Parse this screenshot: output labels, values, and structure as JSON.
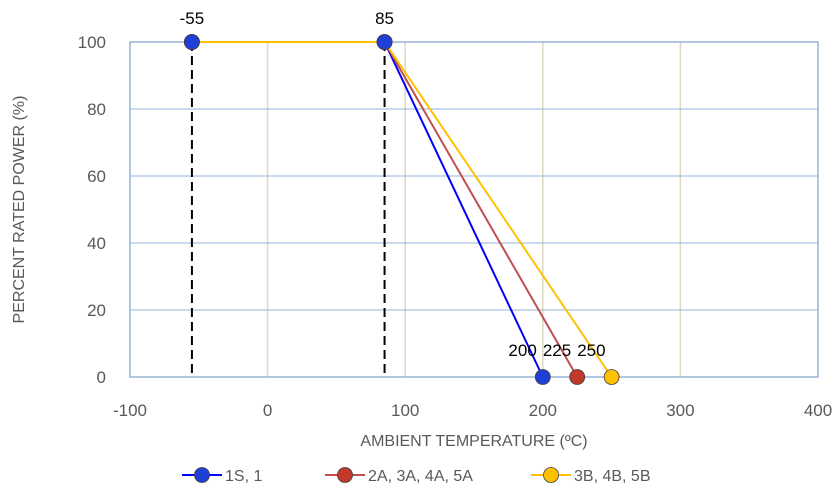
{
  "chart_data": {
    "type": "line",
    "xlabel": "AMBIENT TEMPERATURE (ºC)",
    "ylabel": "PERCENT RATED POWER (%)",
    "xlim": [
      -100,
      400
    ],
    "ylim": [
      0,
      100
    ],
    "xticks": [
      "-100",
      "0",
      "100",
      "200",
      "300",
      "400"
    ],
    "yticks": [
      "0",
      "20",
      "40",
      "60",
      "80",
      "100"
    ],
    "grid": true,
    "legend_position": "bottom",
    "series": [
      {
        "name": "1S, 1",
        "color": "#0000ff",
        "marker_color": "#1f3fd6",
        "points": [
          [
            -55,
            100
          ],
          [
            85,
            100
          ],
          [
            200,
            0
          ]
        ]
      },
      {
        "name": "2A, 3A, 4A, 5A",
        "color": "#c0504d",
        "marker_color": "#c0392b",
        "points": [
          [
            -55,
            100
          ],
          [
            85,
            100
          ],
          [
            225,
            0
          ]
        ]
      },
      {
        "name": "3B, 4B, 5B",
        "color": "#ffc000",
        "marker_color": "#ffc000",
        "points": [
          [
            -55,
            100
          ],
          [
            85,
            100
          ],
          [
            250,
            0
          ]
        ]
      }
    ],
    "reference_lines": [
      {
        "x": -55,
        "style": "dashed"
      },
      {
        "x": 85,
        "style": "dashed"
      }
    ],
    "annotations": [
      {
        "text": "-55",
        "x": -55,
        "y": 100,
        "placement": "above"
      },
      {
        "text": "85",
        "x": 85,
        "y": 100,
        "placement": "above"
      },
      {
        "text": "200",
        "x": 200,
        "y": 0,
        "placement": "upper-left"
      },
      {
        "text": "225",
        "x": 225,
        "y": 0,
        "placement": "upper-left"
      },
      {
        "text": "250",
        "x": 250,
        "y": 0,
        "placement": "upper-left"
      }
    ],
    "colors": {
      "gridline": "#ddd9c3",
      "plot_border": "#95b3d7",
      "text": "#595959",
      "reference_line": "#000000"
    }
  }
}
